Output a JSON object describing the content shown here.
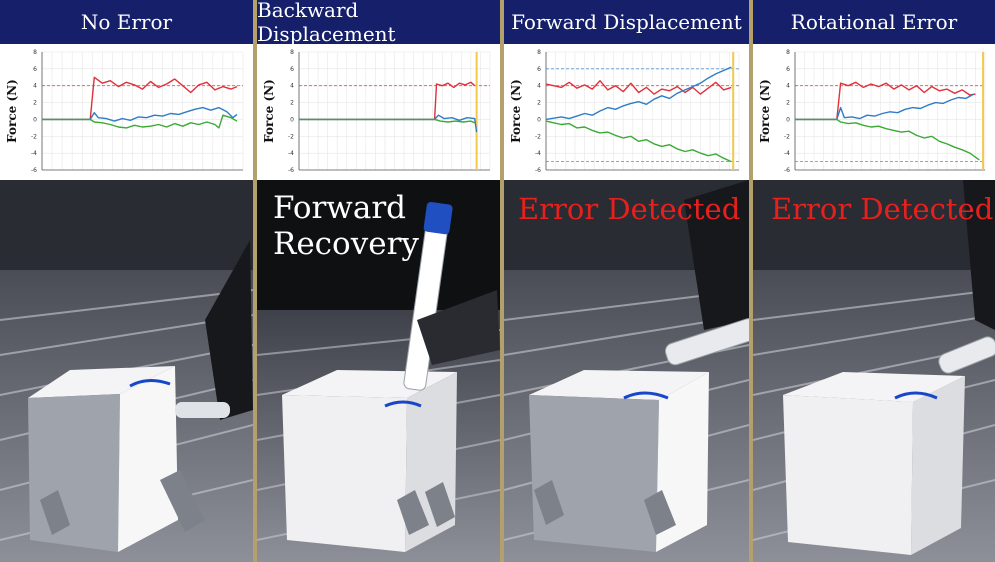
{
  "panels": [
    {
      "title": "No Error",
      "overlay_text": ""
    },
    {
      "title": "Backward Displacement",
      "overlay_text": "Forward\nRecovery"
    },
    {
      "title": "Forward Displacement",
      "overlay_text": "Error Detected"
    },
    {
      "title": "Rotational Error",
      "overlay_text": "Error Detected"
    }
  ],
  "colors": {
    "red": "#e0303a",
    "blue": "#2f7cc8",
    "green": "#3aaa35",
    "yellow": "#f2c94c",
    "header": "#16206a",
    "divider": "#b3a06b",
    "overlay_red": "#e8201d"
  },
  "chart_data": [
    {
      "type": "line",
      "ylabel": "Force (N)",
      "ylim": [
        -6,
        8
      ],
      "yticks": [
        -6,
        -4,
        -2,
        0,
        2,
        4,
        6,
        8
      ],
      "xlim": [
        0,
        100
      ],
      "reference_lines": [
        4
      ],
      "marker_x": null,
      "series": [
        {
          "color": "red",
          "x": [
            0,
            24,
            26,
            30,
            34,
            38,
            42,
            46,
            50,
            54,
            58,
            62,
            66,
            70,
            74,
            78,
            82,
            86,
            90,
            94,
            97
          ],
          "y": [
            0,
            0,
            5,
            4.3,
            4.6,
            3.9,
            4.4,
            4.1,
            3.6,
            4.5,
            3.8,
            4.2,
            4.8,
            4.0,
            3.2,
            4.1,
            4.4,
            3.5,
            3.9,
            3.6,
            3.9
          ]
        },
        {
          "color": "blue",
          "x": [
            0,
            24,
            26,
            28,
            32,
            36,
            40,
            44,
            48,
            52,
            56,
            60,
            64,
            68,
            72,
            76,
            80,
            84,
            88,
            92,
            95,
            97
          ],
          "y": [
            0,
            0,
            0.8,
            0.2,
            0.1,
            -0.2,
            0.1,
            -0.1,
            0.3,
            0.2,
            0.5,
            0.4,
            0.7,
            0.6,
            0.9,
            1.2,
            1.4,
            1.1,
            1.4,
            0.9,
            0.2,
            0.6
          ]
        },
        {
          "color": "green",
          "x": [
            0,
            24,
            26,
            30,
            34,
            38,
            42,
            46,
            50,
            54,
            58,
            62,
            66,
            70,
            74,
            78,
            82,
            86,
            88,
            90,
            94,
            97
          ],
          "y": [
            0,
            0,
            -0.3,
            -0.4,
            -0.6,
            -0.9,
            -1.0,
            -0.7,
            -0.9,
            -0.8,
            -0.6,
            -0.9,
            -0.5,
            -0.8,
            -0.4,
            -0.6,
            -0.3,
            -0.6,
            -1.0,
            0.5,
            0.2,
            -0.2
          ]
        }
      ]
    },
    {
      "type": "line",
      "ylabel": "Force (N)",
      "ylim": [
        -6,
        8
      ],
      "yticks": [
        -6,
        -4,
        -2,
        0,
        2,
        4,
        6,
        8
      ],
      "xlim": [
        0,
        100
      ],
      "reference_lines": [
        4
      ],
      "marker_x": 93,
      "series": [
        {
          "color": "red",
          "x": [
            0,
            71,
            72,
            75,
            78,
            81,
            84,
            87,
            90,
            92
          ],
          "y": [
            0,
            0,
            4.2,
            4.0,
            4.3,
            3.8,
            4.3,
            4.1,
            4.4,
            4.0
          ]
        },
        {
          "color": "blue",
          "x": [
            0,
            71,
            73,
            76,
            80,
            84,
            88,
            92,
            93
          ],
          "y": [
            0,
            0,
            0.5,
            0.1,
            0.2,
            -0.1,
            0.2,
            0.1,
            -1.5
          ]
        },
        {
          "color": "green",
          "x": [
            0,
            71,
            74,
            78,
            82,
            86,
            90,
            92
          ],
          "y": [
            0,
            0,
            -0.2,
            -0.3,
            -0.2,
            -0.3,
            -0.2,
            -0.4
          ]
        }
      ]
    },
    {
      "type": "line",
      "ylabel": "Force (N)",
      "ylim": [
        -6,
        8
      ],
      "yticks": [
        -6,
        -4,
        -2,
        0,
        2,
        4,
        6,
        8
      ],
      "xlim": [
        0,
        100
      ],
      "reference_lines": [
        6,
        4,
        -5
      ],
      "marker_x": 97,
      "series": [
        {
          "color": "red",
          "x": [
            0,
            4,
            8,
            12,
            16,
            20,
            24,
            28,
            32,
            36,
            40,
            44,
            48,
            52,
            56,
            60,
            64,
            68,
            72,
            76,
            80,
            84,
            88,
            92,
            96
          ],
          "y": [
            4.2,
            4.0,
            3.8,
            4.4,
            3.7,
            4.1,
            3.6,
            4.6,
            3.5,
            4.0,
            3.3,
            4.3,
            3.2,
            3.8,
            3.0,
            3.6,
            3.4,
            3.9,
            3.2,
            3.8,
            3.0,
            3.7,
            4.4,
            3.5,
            3.8
          ]
        },
        {
          "color": "blue",
          "x": [
            0,
            8,
            12,
            16,
            20,
            24,
            28,
            32,
            36,
            40,
            44,
            48,
            52,
            56,
            60,
            64,
            68,
            72,
            76,
            80,
            84,
            88,
            92,
            96
          ],
          "y": [
            0,
            0.3,
            0.1,
            0.4,
            0.7,
            0.5,
            1.0,
            1.4,
            1.2,
            1.6,
            1.9,
            2.1,
            1.8,
            2.4,
            2.8,
            2.5,
            3.1,
            3.5,
            3.9,
            4.3,
            4.9,
            5.4,
            5.8,
            6.2
          ]
        },
        {
          "color": "green",
          "x": [
            0,
            4,
            8,
            12,
            16,
            20,
            24,
            28,
            32,
            36,
            40,
            44,
            48,
            52,
            56,
            60,
            64,
            68,
            72,
            76,
            80,
            84,
            88,
            92,
            96
          ],
          "y": [
            -0.2,
            -0.4,
            -0.6,
            -0.5,
            -1.0,
            -0.9,
            -1.3,
            -1.6,
            -1.5,
            -1.9,
            -2.2,
            -2.0,
            -2.6,
            -2.4,
            -2.9,
            -3.2,
            -3.0,
            -3.5,
            -3.8,
            -3.6,
            -4.0,
            -4.3,
            -4.1,
            -4.6,
            -5.0
          ]
        }
      ]
    },
    {
      "type": "line",
      "ylabel": "Force (N)",
      "ylim": [
        -6,
        8
      ],
      "yticks": [
        -6,
        -4,
        -2,
        0,
        2,
        4,
        6,
        8
      ],
      "xlim": [
        0,
        100
      ],
      "reference_lines": [
        4,
        -5
      ],
      "marker_x": 99,
      "series": [
        {
          "color": "red",
          "x": [
            0,
            22,
            24,
            28,
            32,
            36,
            40,
            44,
            48,
            52,
            56,
            60,
            64,
            68,
            72,
            76,
            80,
            84,
            88,
            92,
            95
          ],
          "y": [
            0,
            0,
            4.3,
            4.0,
            4.4,
            3.8,
            4.2,
            3.9,
            4.3,
            3.6,
            4.1,
            3.5,
            4.0,
            3.2,
            3.9,
            3.4,
            3.6,
            3.1,
            3.5,
            2.9,
            3.0
          ]
        },
        {
          "color": "blue",
          "x": [
            0,
            22,
            24,
            26,
            30,
            34,
            38,
            42,
            46,
            50,
            54,
            58,
            62,
            66,
            70,
            74,
            78,
            82,
            86,
            90,
            94
          ],
          "y": [
            0,
            0,
            1.4,
            0.2,
            0.3,
            0.1,
            0.5,
            0.4,
            0.7,
            0.9,
            0.8,
            1.2,
            1.4,
            1.3,
            1.7,
            2.0,
            1.9,
            2.3,
            2.6,
            2.5,
            3.0
          ]
        },
        {
          "color": "green",
          "x": [
            0,
            22,
            24,
            28,
            32,
            36,
            40,
            44,
            48,
            52,
            56,
            60,
            64,
            68,
            72,
            76,
            80,
            84,
            88,
            92,
            97
          ],
          "y": [
            0,
            0,
            -0.3,
            -0.5,
            -0.4,
            -0.7,
            -0.9,
            -0.8,
            -1.1,
            -1.3,
            -1.5,
            -1.4,
            -1.9,
            -2.2,
            -2.0,
            -2.6,
            -2.9,
            -3.3,
            -3.6,
            -4.0,
            -4.8
          ]
        }
      ]
    }
  ]
}
